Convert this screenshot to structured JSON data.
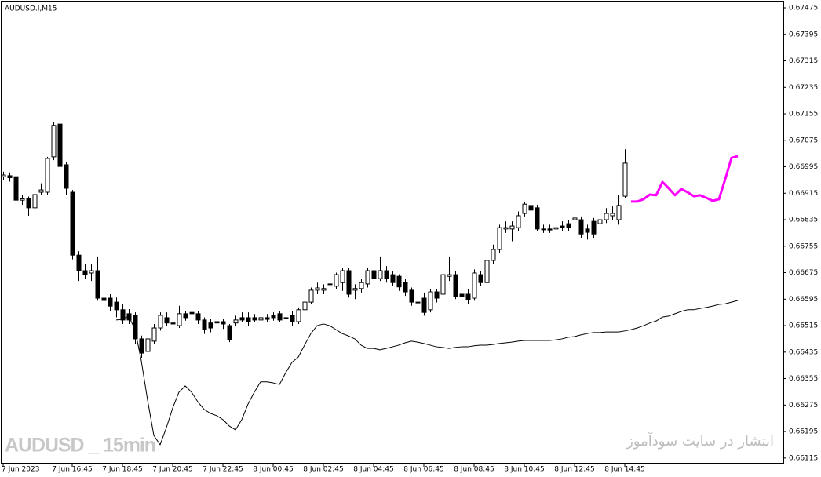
{
  "chart_data": {
    "type": "candlestick",
    "title": "AUDUSD.I,M15",
    "annotations": [
      "AUDUSD _ 15min",
      "انتشار در سایت سودآموز"
    ],
    "ylim": [
      0.66098,
      0.67494
    ],
    "yticks": [
      0.67475,
      0.67395,
      0.67315,
      0.67235,
      0.67155,
      0.67075,
      0.66995,
      0.66915,
      0.66835,
      0.66755,
      0.66675,
      0.66595,
      0.66515,
      0.66435,
      0.66355,
      0.66275,
      0.66195,
      0.66115
    ],
    "up_color": "#ffffff",
    "down_color": "#000000",
    "categories": [
      "7 Jun 2023",
      null,
      null,
      null,
      null,
      null,
      null,
      null,
      null,
      null,
      null,
      "7 Jun 16:45",
      null,
      null,
      null,
      null,
      null,
      null,
      null,
      "7 Jun 18:45",
      null,
      null,
      null,
      null,
      null,
      null,
      null,
      "7 Jun 20:45",
      null,
      null,
      null,
      null,
      null,
      null,
      null,
      "7 Jun 22:45",
      null,
      null,
      null,
      null,
      null,
      null,
      null,
      "8 Jun 00:45",
      null,
      null,
      null,
      null,
      null,
      null,
      null,
      "8 Jun 02:45",
      null,
      null,
      null,
      null,
      null,
      null,
      null,
      "8 Jun 04:45",
      null,
      null,
      null,
      null,
      null,
      null,
      null,
      "8 Jun 06:45",
      null,
      null,
      null,
      null,
      null,
      null,
      null,
      "8 Jun 08:45",
      null,
      null,
      null,
      null,
      null,
      null,
      null,
      "8 Jun 10:45",
      null,
      null,
      null,
      null,
      null,
      null,
      null,
      "8 Jun 12:45",
      null,
      null,
      null,
      null,
      null,
      null,
      null,
      "8 Jun 14:45",
      null,
      null,
      null,
      null,
      null,
      null,
      null,
      null,
      null,
      null,
      null,
      null,
      null,
      null,
      null,
      null,
      null,
      null
    ],
    "ohlc": [
      [
        0.66965,
        0.6698,
        0.66955,
        0.6697
      ],
      [
        0.66968,
        0.66978,
        0.6695,
        0.66962
      ],
      [
        0.66965,
        0.6697,
        0.66885,
        0.66894
      ],
      [
        0.66894,
        0.6691,
        0.6688,
        0.66898
      ],
      [
        0.669,
        0.66905,
        0.66847,
        0.66871
      ],
      [
        0.66871,
        0.66915,
        0.6686,
        0.66911
      ],
      [
        0.66918,
        0.66945,
        0.6691,
        0.66925
      ],
      [
        0.66918,
        0.67025,
        0.6691,
        0.6702
      ],
      [
        0.67025,
        0.67131,
        0.67015,
        0.6712
      ],
      [
        0.67124,
        0.67172,
        0.6699,
        0.66996
      ],
      [
        0.67001,
        0.6701,
        0.6691,
        0.6693
      ],
      [
        0.66918,
        0.66925,
        0.66715,
        0.66728
      ],
      [
        0.66728,
        0.6674,
        0.6665,
        0.66681
      ],
      [
        0.66681,
        0.667,
        0.66655,
        0.66669
      ],
      [
        0.66674,
        0.667,
        0.6665,
        0.66681
      ],
      [
        0.66681,
        0.66724,
        0.6659,
        0.66598
      ],
      [
        0.66598,
        0.6661,
        0.6658,
        0.66591
      ],
      [
        0.66598,
        0.6661,
        0.6656,
        0.66574
      ],
      [
        0.66586,
        0.666,
        0.6654,
        0.66563
      ],
      [
        0.66563,
        0.6658,
        0.6652,
        0.66532
      ],
      [
        0.66551,
        0.66565,
        0.6652,
        0.66532
      ],
      [
        0.66546,
        0.66555,
        0.6646,
        0.66475
      ],
      [
        0.66475,
        0.66485,
        0.66418,
        0.66432
      ],
      [
        0.66437,
        0.6649,
        0.6643,
        0.66475
      ],
      [
        0.66468,
        0.6652,
        0.6646,
        0.66508
      ],
      [
        0.66508,
        0.66555,
        0.665,
        0.66546
      ],
      [
        0.66539,
        0.66555,
        0.66515,
        0.66523
      ],
      [
        0.66523,
        0.66535,
        0.6651,
        0.6652
      ],
      [
        0.66515,
        0.66575,
        0.66508,
        0.66551
      ],
      [
        0.66551,
        0.6656,
        0.6653,
        0.66539
      ],
      [
        0.66555,
        0.66565,
        0.6654,
        0.66551
      ],
      [
        0.66551,
        0.6656,
        0.6652,
        0.66532
      ],
      [
        0.66532,
        0.6654,
        0.6649,
        0.66503
      ],
      [
        0.66523,
        0.66535,
        0.66495,
        0.66508
      ],
      [
        0.66527,
        0.6654,
        0.6651,
        0.66523
      ],
      [
        0.66527,
        0.66535,
        0.66505,
        0.6652
      ],
      [
        0.66515,
        0.6652,
        0.66465,
        0.66472
      ],
      [
        0.66523,
        0.66545,
        0.66515,
        0.66532
      ],
      [
        0.66539,
        0.66555,
        0.66525,
        0.66532
      ],
      [
        0.66539,
        0.66555,
        0.66515,
        0.66527
      ],
      [
        0.66539,
        0.6655,
        0.66525,
        0.66532
      ],
      [
        0.66532,
        0.66545,
        0.66525,
        0.66539
      ],
      [
        0.66539,
        0.6655,
        0.66525,
        0.66534
      ],
      [
        0.66546,
        0.66555,
        0.6653,
        0.66539
      ],
      [
        0.66551,
        0.6656,
        0.66525,
        0.66532
      ],
      [
        0.66539,
        0.6655,
        0.66525,
        0.66539
      ],
      [
        0.66546,
        0.6656,
        0.66515,
        0.66527
      ],
      [
        0.66527,
        0.6657,
        0.6652,
        0.66563
      ],
      [
        0.66563,
        0.66595,
        0.66555,
        0.66586
      ],
      [
        0.66586,
        0.6663,
        0.6658,
        0.66622
      ],
      [
        0.66622,
        0.66645,
        0.6661,
        0.66629
      ],
      [
        0.66622,
        0.6664,
        0.6661,
        0.66627
      ],
      [
        0.66641,
        0.6666,
        0.6663,
        0.66641
      ],
      [
        0.66634,
        0.66675,
        0.66625,
        0.66669
      ],
      [
        0.66645,
        0.6669,
        0.6662,
        0.66681
      ],
      [
        0.66681,
        0.6669,
        0.666,
        0.6661
      ],
      [
        0.66622,
        0.6664,
        0.66595,
        0.66627
      ],
      [
        0.66627,
        0.66655,
        0.66615,
        0.66645
      ],
      [
        0.66641,
        0.6669,
        0.6663,
        0.66681
      ],
      [
        0.66681,
        0.6669,
        0.66645,
        0.66657
      ],
      [
        0.66657,
        0.66724,
        0.6665,
        0.66681
      ],
      [
        0.66681,
        0.66695,
        0.66645,
        0.66657
      ],
      [
        0.66669,
        0.6668,
        0.66635,
        0.66645
      ],
      [
        0.66664,
        0.6667,
        0.6662,
        0.66632
      ],
      [
        0.66645,
        0.66655,
        0.66605,
        0.66617
      ],
      [
        0.66622,
        0.6663,
        0.66575,
        0.66586
      ],
      [
        0.66586,
        0.666,
        0.6657,
        0.66586
      ],
      [
        0.66598,
        0.66615,
        0.66545,
        0.66555
      ],
      [
        0.66563,
        0.66625,
        0.66555,
        0.66617
      ],
      [
        0.66617,
        0.66625,
        0.66585,
        0.66598
      ],
      [
        0.6661,
        0.66675,
        0.666,
        0.66669
      ],
      [
        0.66664,
        0.66724,
        0.6665,
        0.66669
      ],
      [
        0.66669,
        0.6668,
        0.66595,
        0.66603
      ],
      [
        0.6661,
        0.66625,
        0.6659,
        0.66603
      ],
      [
        0.6661,
        0.66625,
        0.6658,
        0.66594
      ],
      [
        0.66598,
        0.66685,
        0.6659,
        0.66674
      ],
      [
        0.66669,
        0.6668,
        0.66635,
        0.66645
      ],
      [
        0.66645,
        0.6672,
        0.66635,
        0.66712
      ],
      [
        0.66712,
        0.6676,
        0.667,
        0.66745
      ],
      [
        0.66745,
        0.6682,
        0.66735,
        0.66811
      ],
      [
        0.66807,
        0.6683,
        0.66795,
        0.66811
      ],
      [
        0.66807,
        0.6683,
        0.6677,
        0.66816
      ],
      [
        0.66811,
        0.6686,
        0.668,
        0.66847
      ],
      [
        0.66854,
        0.6689,
        0.66845,
        0.66882
      ],
      [
        0.66878,
        0.66894,
        0.66855,
        0.66864
      ],
      [
        0.66871,
        0.6688,
        0.668,
        0.66807
      ],
      [
        0.66807,
        0.6682,
        0.66795,
        0.66807
      ],
      [
        0.66807,
        0.6682,
        0.66795,
        0.66804
      ],
      [
        0.66807,
        0.66825,
        0.6679,
        0.66811
      ],
      [
        0.66816,
        0.6683,
        0.668,
        0.66811
      ],
      [
        0.66823,
        0.66835,
        0.668,
        0.66811
      ],
      [
        0.66835,
        0.6686,
        0.6682,
        0.6684
      ],
      [
        0.66835,
        0.66845,
        0.6678,
        0.66792
      ],
      [
        0.66807,
        0.6682,
        0.66775,
        0.66797
      ],
      [
        0.6683,
        0.6684,
        0.6678,
        0.66792
      ],
      [
        0.66823,
        0.66845,
        0.6681,
        0.66835
      ],
      [
        0.66835,
        0.6687,
        0.66825,
        0.66854
      ],
      [
        0.66847,
        0.66875,
        0.66835,
        0.66854
      ],
      [
        0.66835,
        0.6691,
        0.6682,
        0.66878
      ],
      [
        0.66906,
        0.67048,
        0.669,
        0.67006
      ],
      null,
      null,
      null,
      null,
      null,
      null,
      null,
      null,
      null,
      null,
      null,
      null,
      null,
      null,
      null,
      null,
      null,
      null
    ],
    "series": [
      {
        "color": "#000000",
        "values": [
          null,
          null,
          null,
          null,
          null,
          null,
          null,
          null,
          null,
          null,
          null,
          null,
          null,
          null,
          null,
          null,
          null,
          null,
          0.66532,
          0.66534,
          0.66544,
          0.66503,
          0.66409,
          0.6629,
          0.66183,
          0.66155,
          0.66207,
          0.66266,
          0.66314,
          0.66333,
          0.66314,
          0.66285,
          0.66262,
          0.6625,
          0.66243,
          0.66231,
          0.66212,
          0.662,
          0.66231,
          0.66278,
          0.66314,
          0.66345,
          0.66345,
          0.66342,
          0.66337,
          0.66373,
          0.66404,
          0.6642,
          0.66456,
          0.66491,
          0.66515,
          0.6652,
          0.66515,
          0.66503,
          0.66491,
          0.66484,
          0.66475,
          0.66456,
          0.66446,
          0.66446,
          0.66442,
          0.66446,
          0.66451,
          0.66456,
          0.66463,
          0.66468,
          0.66465,
          0.66461,
          0.66456,
          0.66451,
          0.66449,
          0.66446,
          0.66449,
          0.66451,
          0.66451,
          0.66454,
          0.66456,
          0.66456,
          0.66458,
          0.66461,
          0.66463,
          0.66465,
          0.66468,
          0.6647,
          0.6647,
          0.6647,
          0.6647,
          0.6647,
          0.66472,
          0.66475,
          0.6648,
          0.66482,
          0.66487,
          0.66491,
          0.66494,
          0.66494,
          0.66496,
          0.66496,
          0.66496,
          0.66499,
          0.66503,
          0.66508,
          0.66515,
          0.66523,
          0.66529,
          0.66541,
          0.66544,
          0.66551,
          0.66558,
          0.66563,
          0.66563,
          0.66567,
          0.6657,
          0.66574,
          0.66579,
          0.66581,
          0.66586,
          0.66591
        ]
      },
      {
        "color": "#ff00ff",
        "values": [
          null,
          null,
          null,
          null,
          null,
          null,
          null,
          null,
          null,
          null,
          null,
          null,
          null,
          null,
          null,
          null,
          null,
          null,
          null,
          null,
          null,
          null,
          null,
          null,
          null,
          null,
          null,
          null,
          null,
          null,
          null,
          null,
          null,
          null,
          null,
          null,
          null,
          null,
          null,
          null,
          null,
          null,
          null,
          null,
          null,
          null,
          null,
          null,
          null,
          null,
          null,
          null,
          null,
          null,
          null,
          null,
          null,
          null,
          null,
          null,
          null,
          null,
          null,
          null,
          null,
          null,
          null,
          null,
          null,
          null,
          null,
          null,
          null,
          null,
          null,
          null,
          null,
          null,
          null,
          null,
          null,
          null,
          null,
          null,
          null,
          null,
          null,
          null,
          null,
          null,
          null,
          null,
          null,
          null,
          null,
          null,
          null,
          null,
          null,
          null,
          0.6689,
          0.6689,
          0.66897,
          0.66911,
          0.66909,
          0.66949,
          0.6693,
          0.66909,
          0.66928,
          0.66918,
          0.66906,
          0.66909,
          0.66901,
          0.66892,
          0.66897,
          0.66958,
          0.67022,
          0.67027
        ]
      }
    ]
  }
}
